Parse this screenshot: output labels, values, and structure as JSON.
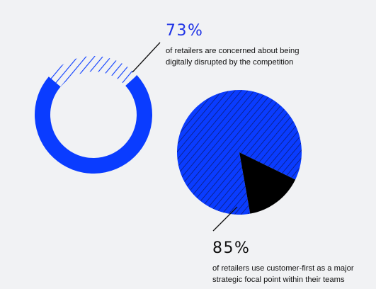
{
  "colors": {
    "accent": "#0a3cff",
    "dark": "#000000",
    "line": "#111111",
    "background": "#f1f2f4"
  },
  "stats": [
    {
      "value": "73%",
      "text_line1": "of retailers are concerned about being",
      "text_line2": "digitally disrupted by the competition"
    },
    {
      "value": "85%",
      "text_line1": "of retailers use customer-first as a major",
      "text_line2": "strategic focal point within their teams"
    }
  ],
  "chart_data": [
    {
      "type": "pie",
      "style": "donut",
      "slices": [
        {
          "value": 73,
          "fill": "solid-accent"
        },
        {
          "value": 27,
          "fill": "hatched-accent"
        }
      ]
    },
    {
      "type": "pie",
      "style": "full",
      "slices": [
        {
          "value": 85,
          "fill": "hatched-accent"
        },
        {
          "value": 15,
          "fill": "solid-dark"
        }
      ]
    }
  ]
}
